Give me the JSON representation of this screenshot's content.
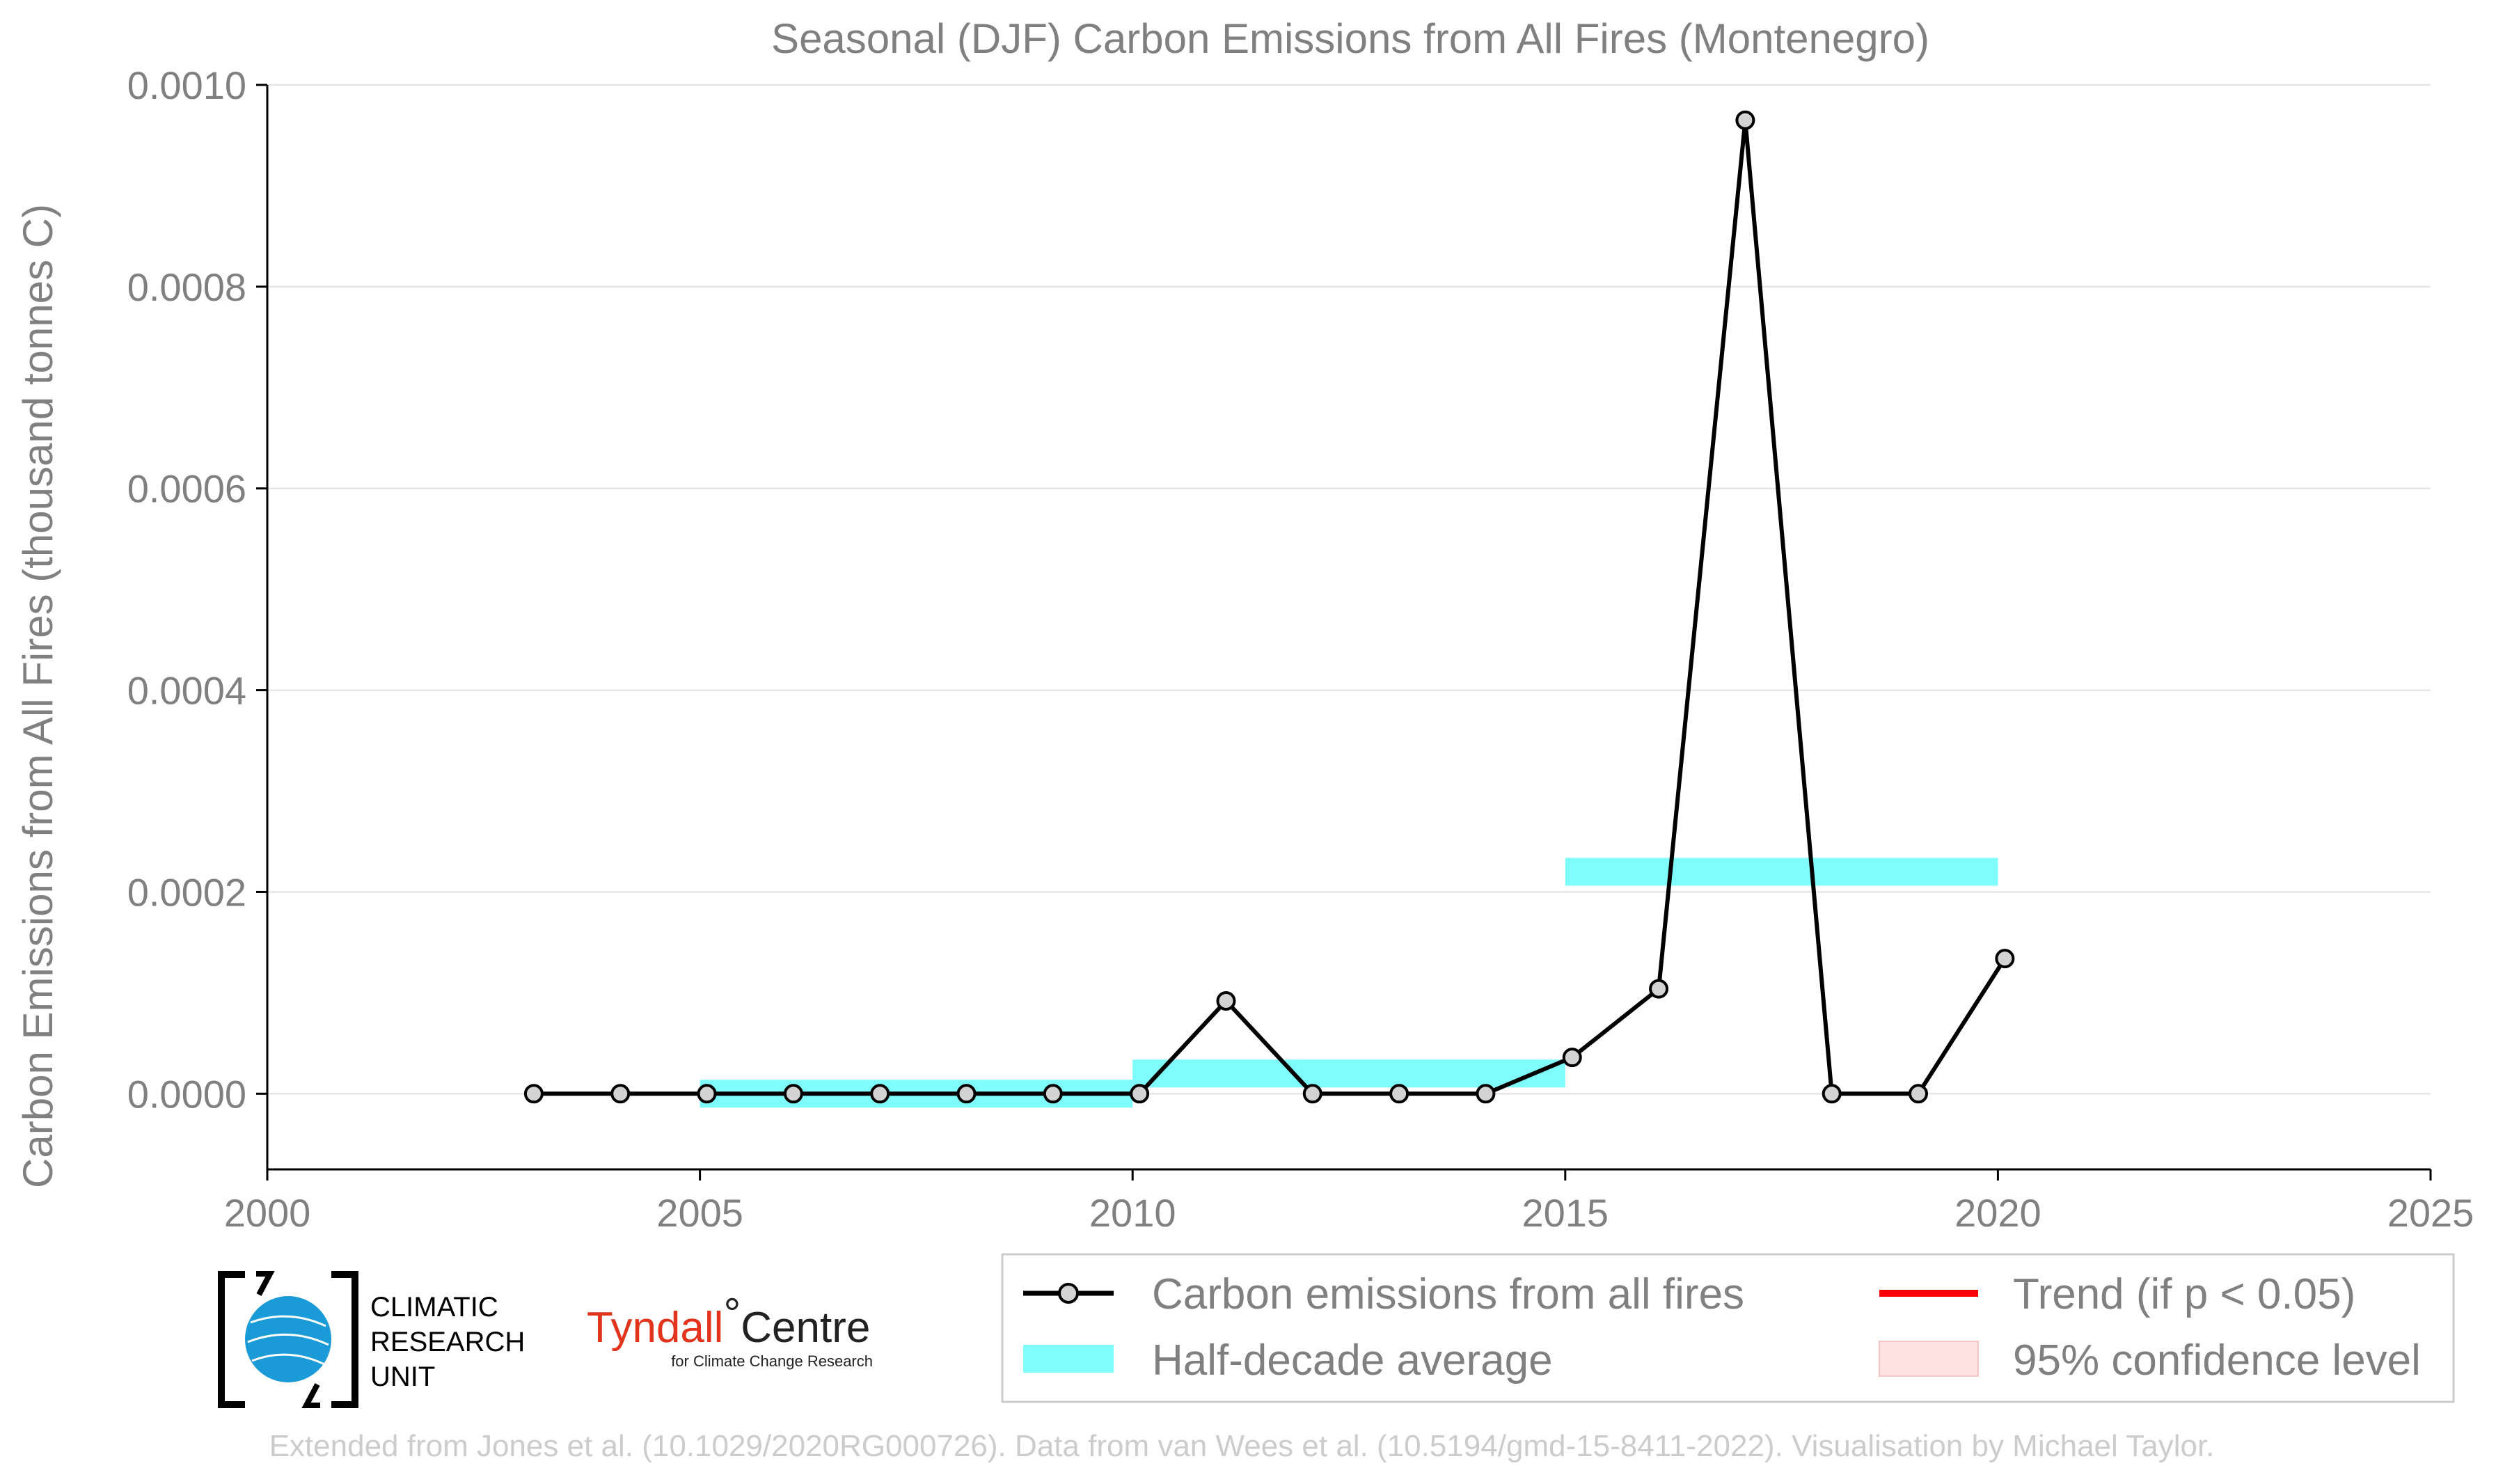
{
  "chart_data": {
    "type": "line",
    "title": "Seasonal (DJF) Carbon Emissions from All Fires (Montenegro)",
    "xlabel": "",
    "ylabel": "Carbon Emissions from All Fires (thousand tonnes C)",
    "xlim": [
      2000,
      2025
    ],
    "ylim": [
      -7.5e-05,
      0.001
    ],
    "x_ticks": [
      2000,
      2005,
      2010,
      2015,
      2020,
      2025
    ],
    "x_tick_labels": [
      "2000",
      "2005",
      "2010",
      "2015",
      "2020",
      "2025"
    ],
    "y_ticks": [
      0.0,
      0.0002,
      0.0004,
      0.0006,
      0.0008,
      0.001
    ],
    "y_tick_labels": [
      "0.0000",
      "0.0002",
      "0.0004",
      "0.0006",
      "0.0008",
      "0.0010"
    ],
    "grid": "horizontal",
    "series": [
      {
        "name": "Carbon emissions from all fires",
        "color": "#000000",
        "marker_fill": "#d3d3d3",
        "x": [
          2003,
          2004,
          2005,
          2006,
          2007,
          2008,
          2009,
          2010,
          2011,
          2012,
          2013,
          2014,
          2015,
          2016,
          2017,
          2018,
          2019,
          2020
        ],
        "y": [
          0.0,
          0.0,
          0.0,
          0.0,
          0.0,
          0.0,
          0.0,
          0.0,
          9.2e-05,
          0.0,
          0.0,
          0.0,
          3.6e-05,
          0.000104,
          0.000965,
          0.0,
          0.0,
          0.000134
        ]
      }
    ],
    "half_decade_average": {
      "name": "Half-decade average",
      "color": "#7ffcfc",
      "segments": [
        {
          "x0": 2005,
          "x1": 2010,
          "y": 0.0
        },
        {
          "x0": 2010,
          "x1": 2015,
          "y": 2e-05
        },
        {
          "x0": 2015,
          "x1": 2020,
          "y": 0.00022
        }
      ]
    },
    "legend": {
      "placement": "bottom-right",
      "entries": [
        {
          "label": "Carbon emissions from all fires",
          "kind": "line-marker",
          "color": "#000000"
        },
        {
          "label": "Trend (if p < 0.05)",
          "kind": "line",
          "color": "#ff0000"
        },
        {
          "label": "Half-decade average",
          "kind": "band",
          "color": "#7ffcfc"
        },
        {
          "label": "95% confidence level",
          "kind": "patch",
          "color": "#fde0e0"
        }
      ]
    }
  },
  "logos": {
    "cru": {
      "line1": "CLIMATIC",
      "line2": "RESEARCH",
      "line3": "UNIT"
    },
    "tyndall": {
      "name": "Tyndall",
      "degree": "°",
      "centre": "Centre",
      "sub": "for Climate Change Research"
    }
  },
  "footer": "Extended from Jones et al. (10.1029/2020RG000726). Data from van Wees et al. (10.5194/gmd-15-8411-2022). Visualisation by Michael Taylor."
}
